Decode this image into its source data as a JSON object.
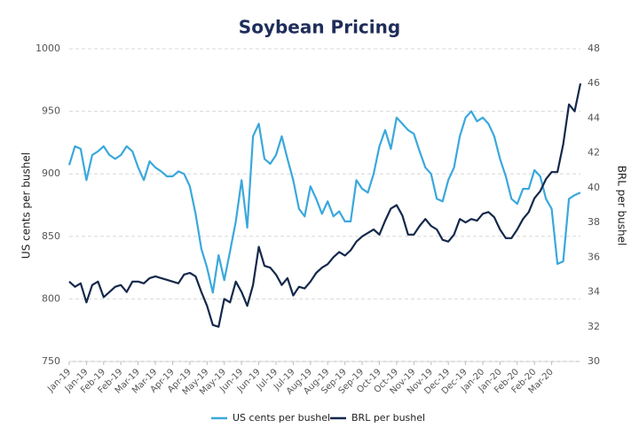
{
  "chart_data": {
    "type": "line",
    "title": "Soybean Pricing",
    "y_label": "US cents per bushel",
    "y2_label": "BRL per bushel",
    "categories": [
      "Jan-19",
      null,
      null,
      "Jan-19",
      null,
      null,
      "Feb-19",
      null,
      null,
      "Feb-19",
      null,
      null,
      "Mar-19",
      null,
      null,
      "Mar-19",
      null,
      null,
      "Apr-19",
      null,
      null,
      "Apr-19",
      null,
      null,
      "May-19",
      null,
      null,
      "May-19",
      null,
      null,
      "Jun-19",
      null,
      null,
      "Jun-19",
      null,
      null,
      "Jul-19",
      null,
      null,
      "Jul-19",
      null,
      null,
      "Aug-19",
      null,
      null,
      "Aug-19",
      null,
      null,
      "Sep-19",
      null,
      null,
      "Sep-19",
      null,
      null,
      "Oct-19",
      null,
      null,
      "Oct-19",
      null,
      null,
      "Nov-19",
      null,
      null,
      "Nov-19",
      null,
      null,
      "Dec-19",
      null,
      null,
      "Dec-19",
      null,
      null,
      "Jan-20",
      null,
      null,
      "Jan-20",
      null,
      null,
      "Feb-20",
      null,
      null,
      "Feb-20",
      null,
      null,
      "Mar-20",
      null,
      null,
      null,
      null,
      null
    ],
    "series": [
      {
        "name": "US cents per bushel",
        "color": "#3aa8dc",
        "axis": "y",
        "values": [
          907,
          922,
          920,
          895,
          915,
          918,
          922,
          915,
          912,
          915,
          922,
          918,
          905,
          895,
          910,
          905,
          902,
          898,
          898,
          902,
          900,
          890,
          868,
          840,
          825,
          805,
          835,
          815,
          838,
          862,
          895,
          857,
          930,
          940,
          912,
          908,
          915,
          930,
          912,
          895,
          872,
          866,
          890,
          880,
          868,
          878,
          866,
          870,
          862,
          862,
          895,
          888,
          885,
          900,
          922,
          935,
          920,
          945,
          940,
          935,
          932,
          918,
          905,
          900,
          880,
          878,
          895,
          905,
          930,
          945,
          950,
          942,
          945,
          940,
          930,
          912,
          898,
          880,
          876,
          888,
          888,
          903,
          898,
          880,
          872,
          828,
          830,
          880,
          883,
          885
        ]
      },
      {
        "name": "BRL per bushel",
        "color": "#14284b",
        "axis": "y2",
        "values": [
          34.6,
          34.3,
          34.5,
          33.4,
          34.4,
          34.6,
          33.7,
          34.0,
          34.3,
          34.4,
          34.0,
          34.6,
          34.6,
          34.5,
          34.8,
          34.9,
          34.8,
          34.7,
          34.6,
          34.5,
          35.0,
          35.1,
          34.9,
          34.0,
          33.2,
          32.1,
          32.0,
          33.6,
          33.4,
          34.6,
          34.0,
          33.2,
          34.4,
          36.6,
          35.5,
          35.4,
          35.0,
          34.4,
          34.8,
          33.8,
          34.3,
          34.2,
          34.6,
          35.1,
          35.4,
          35.6,
          36.0,
          36.3,
          36.1,
          36.4,
          36.9,
          37.2,
          37.4,
          37.6,
          37.3,
          38.1,
          38.8,
          39.0,
          38.4,
          37.3,
          37.3,
          37.8,
          38.2,
          37.8,
          37.6,
          37.0,
          36.9,
          37.3,
          38.2,
          38.0,
          38.2,
          38.1,
          38.5,
          38.6,
          38.3,
          37.6,
          37.1,
          37.1,
          37.6,
          38.2,
          38.6,
          39.4,
          39.8,
          40.5,
          40.9,
          40.9,
          42.5,
          44.8,
          44.4,
          46.0
        ]
      }
    ],
    "ylim": [
      750,
      1000
    ],
    "yticks": [
      750,
      800,
      850,
      900,
      950,
      1000
    ],
    "y2lim": [
      30,
      48
    ],
    "y2ticks": [
      30,
      32,
      34,
      36,
      38,
      40,
      42,
      44,
      46,
      48
    ],
    "grid": true,
    "legend": "bottom"
  }
}
